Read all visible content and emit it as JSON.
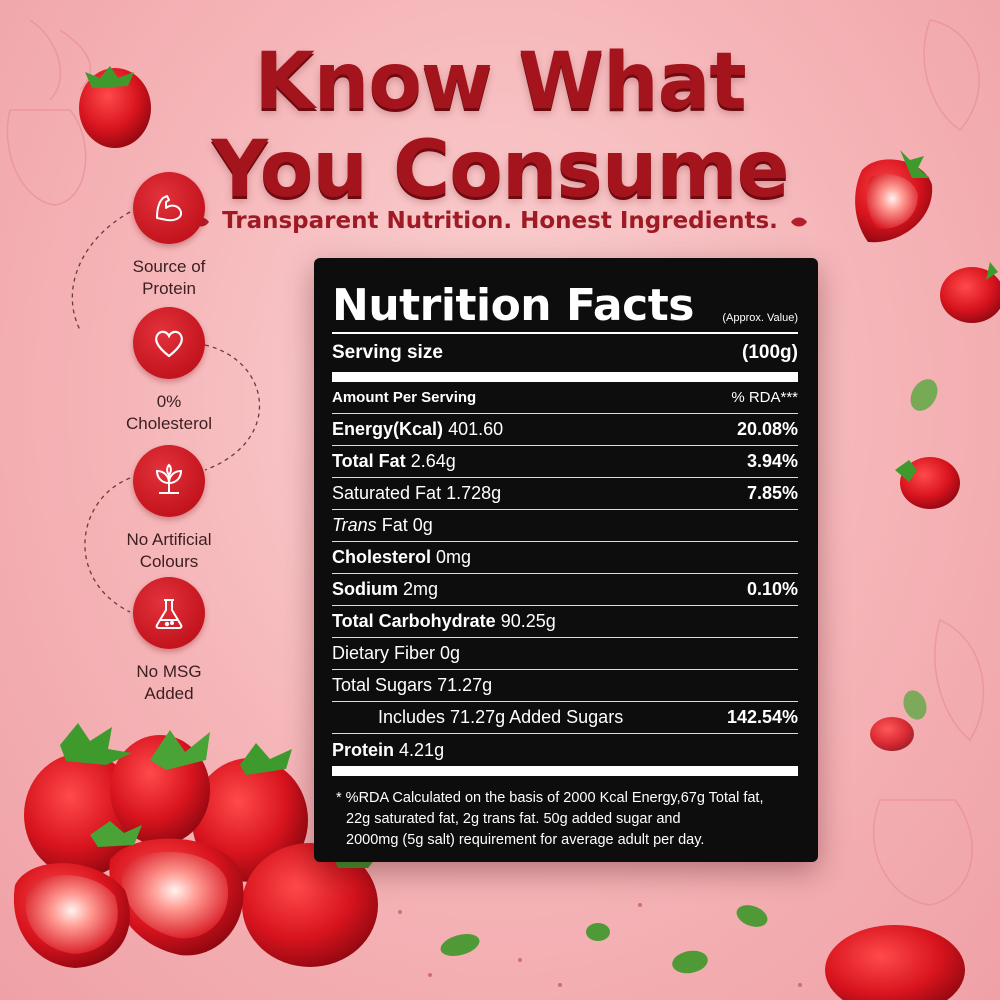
{
  "headline": {
    "line1": "Know What",
    "line2": "You Consume",
    "tagline": "Transparent Nutrition. Honest Ingredients."
  },
  "features": [
    {
      "icon": "muscle-arm-icon",
      "label_line1": "Source of",
      "label_line2": "Protein"
    },
    {
      "icon": "heart-icon",
      "label_line1": "0%",
      "label_line2": "Cholesterol"
    },
    {
      "icon": "leaf-plant-icon",
      "label_line1": "No Artificial",
      "label_line2": "Colours"
    },
    {
      "icon": "flask-icon",
      "label_line1": "No MSG",
      "label_line2": "Added"
    }
  ],
  "nutrition": {
    "title": "Nutrition Facts",
    "approx": "(Approx. Value)",
    "serving_label": "Serving size",
    "serving_value": "(100g)",
    "amount_label": "Amount Per Serving",
    "rda_label": "% RDA***",
    "rows": {
      "energy": {
        "name": "Energy(Kcal)",
        "value": "401.60",
        "pct": "20.08%"
      },
      "total_fat": {
        "name": "Total Fat",
        "value": "2.64g",
        "pct": "3.94%"
      },
      "saturated_fat": {
        "name": "Saturated Fat",
        "value": "1.728g",
        "pct": "7.85%"
      },
      "trans_fat": {
        "name": "Trans",
        "name_suffix": "Fat",
        "value": "0g"
      },
      "cholesterol": {
        "name": "Cholesterol",
        "value": "0mg"
      },
      "sodium": {
        "name": "Sodium",
        "value": "2mg",
        "pct": "0.10%"
      },
      "total_carb": {
        "name": "Total Carbohydrate",
        "value": "90.25g"
      },
      "dietary_fiber": {
        "name": "Dietary Fiber",
        "value": "0g"
      },
      "total_sugars": {
        "name": "Total Sugars",
        "value": "71.27g"
      },
      "added_sugars": {
        "text": "Includes 71.27g Added Sugars",
        "pct": "142.54%"
      },
      "protein": {
        "name": "Protein",
        "value": "4.21g"
      }
    },
    "footnote_line1": "* %RDA Calculated on the basis of 2000 Kcal Energy,67g Total fat,",
    "footnote_line2": "22g saturated fat, 2g trans fat. 50g added sugar and",
    "footnote_line3": "2000mg (5g salt) requirement for average adult per day."
  },
  "colors": {
    "accent_red": "#a3141c",
    "icon_red": "#c4151f",
    "panel_black": "#0d0d0d",
    "background_pink": "#f5b4b7"
  }
}
